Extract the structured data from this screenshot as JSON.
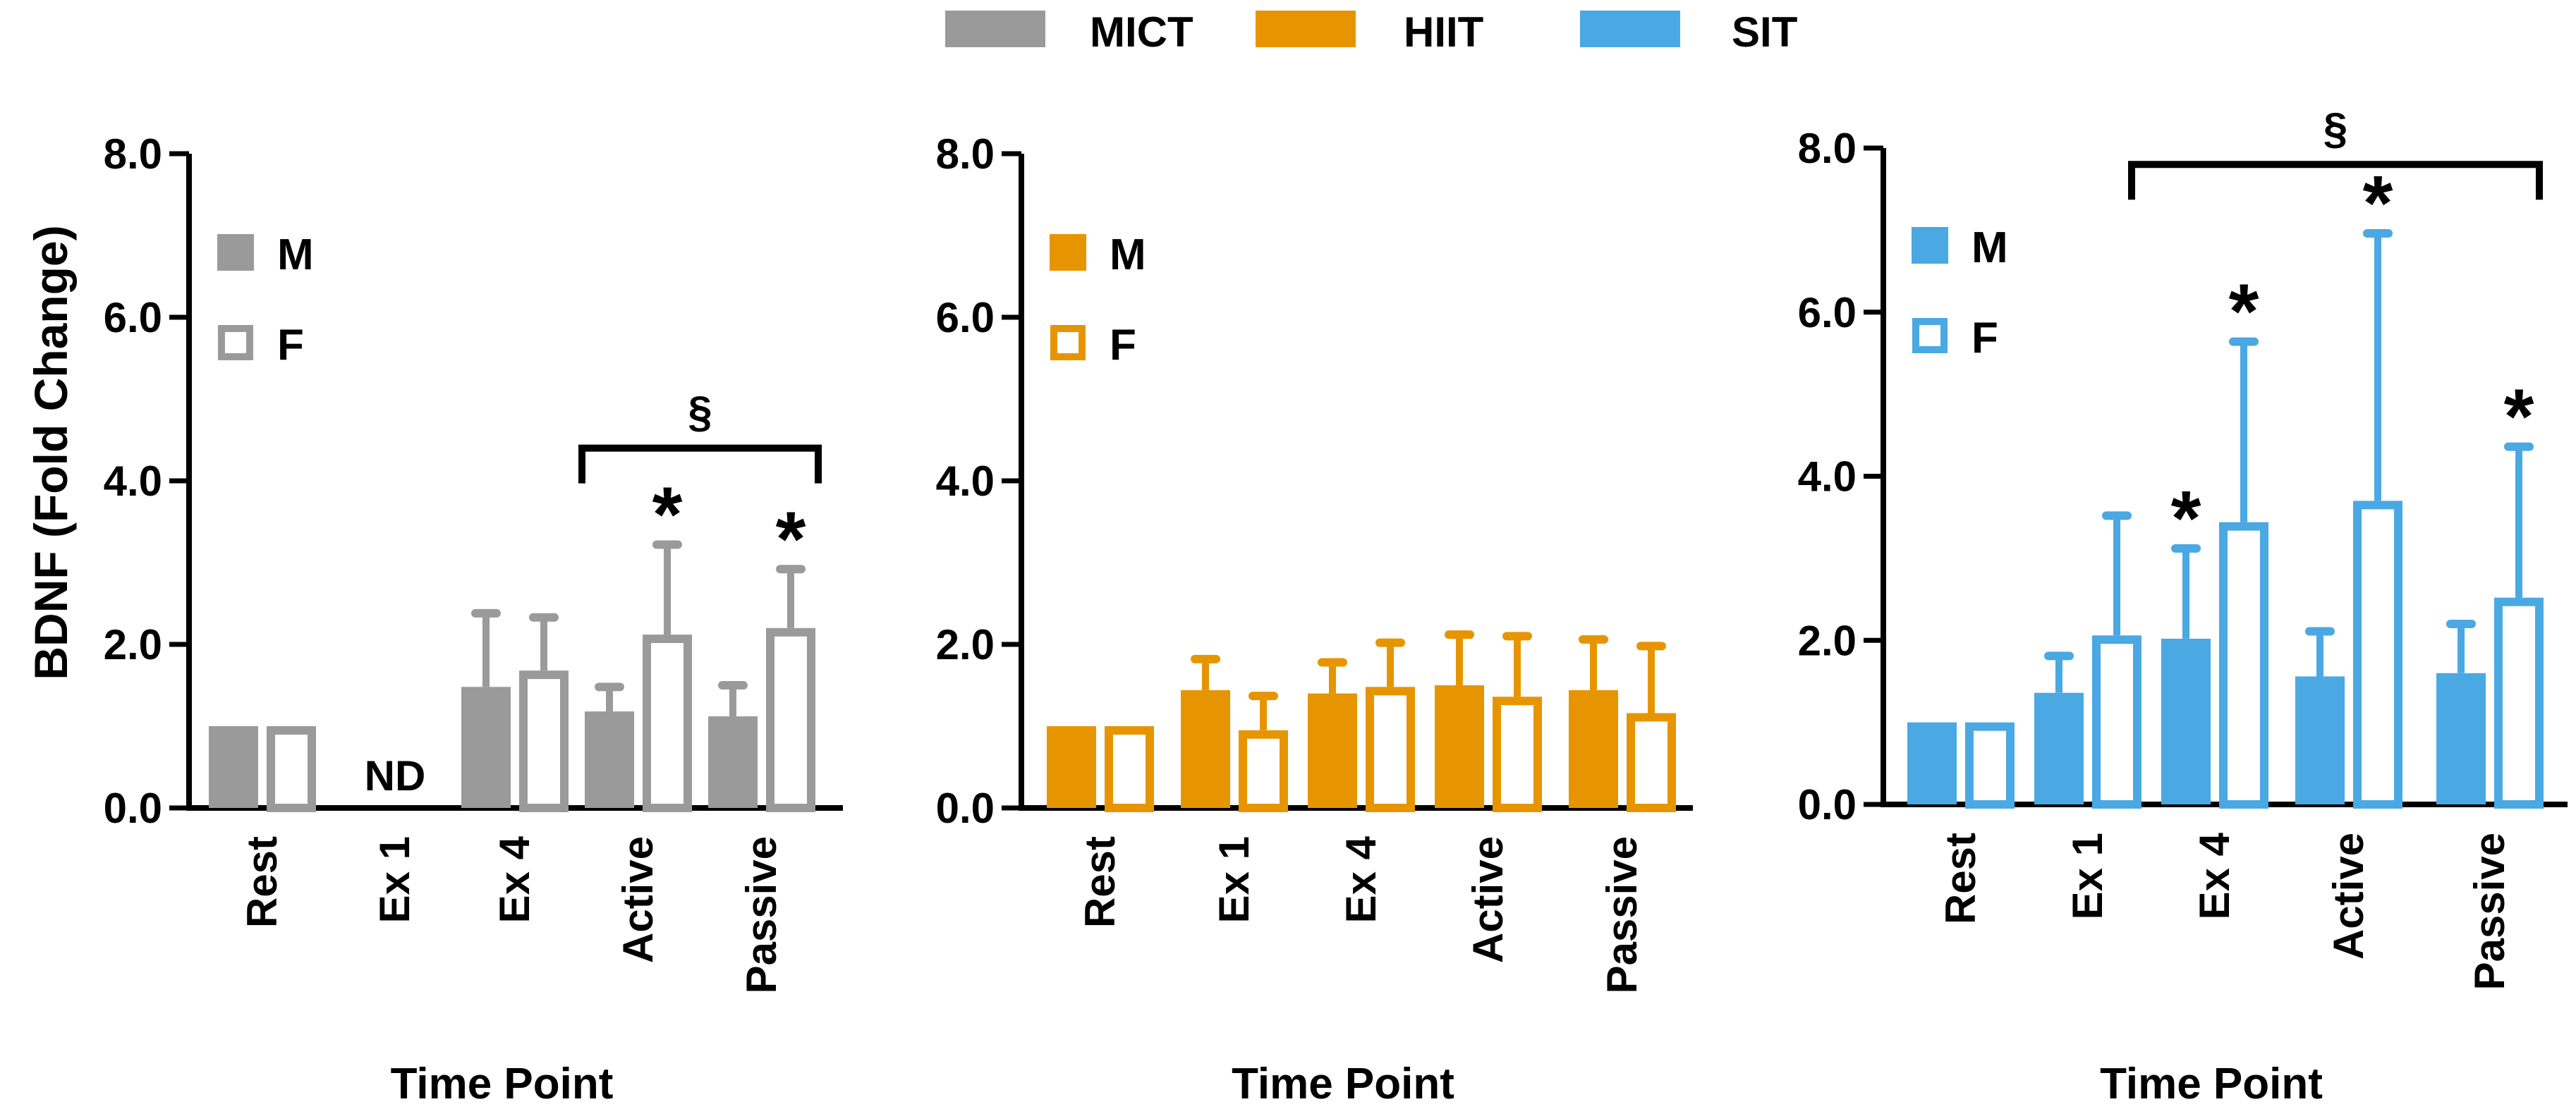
{
  "legend": [
    {
      "label": "MICT",
      "color": "#9a9a9a"
    },
    {
      "label": "HIIT",
      "color": "#e69500"
    },
    {
      "label": "SIT",
      "color": "#4aa8e3"
    }
  ],
  "sex_legend": {
    "male": "M",
    "female": "F"
  },
  "chart_data": [
    {
      "type": "bar",
      "name": "MICT",
      "color": "#9a9a9a",
      "ylabel": "BDNF (Fold Change)",
      "xlabel": "Time Point",
      "ylim": [
        0,
        8
      ],
      "yticks": [
        0,
        2,
        4,
        6,
        8
      ],
      "ytick_labels": [
        "0.0",
        "2.0",
        "4.0",
        "6.0",
        "8.0"
      ],
      "categories": [
        "Rest",
        "Ex 1",
        "Ex 4",
        "Active",
        "Passive"
      ],
      "series": [
        {
          "name": "M",
          "filled": true,
          "values": [
            1.0,
            null,
            1.48,
            1.18,
            1.12
          ],
          "errors": [
            0,
            null,
            0.9,
            0.3,
            0.38
          ]
        },
        {
          "name": "F",
          "filled": false,
          "values": [
            1.0,
            null,
            1.68,
            2.12,
            2.2
          ],
          "errors": [
            0,
            null,
            0.65,
            1.1,
            0.72
          ]
        }
      ],
      "notes": [
        {
          "category": 1,
          "text": "ND"
        }
      ],
      "stars": [
        {
          "category": 3,
          "series": "F"
        },
        {
          "category": 4,
          "series": "F"
        }
      ],
      "bracket": {
        "from": 3,
        "to": 4,
        "label": "§",
        "level": 4.4
      }
    },
    {
      "type": "bar",
      "name": "HIIT",
      "color": "#e69500",
      "ylabel": "",
      "xlabel": "Time Point",
      "ylim": [
        0,
        8
      ],
      "yticks": [
        0,
        2,
        4,
        6,
        8
      ],
      "ytick_labels": [
        "0.0",
        "2.0",
        "4.0",
        "6.0",
        "8.0"
      ],
      "categories": [
        "Rest",
        "Ex 1",
        "Ex 4",
        "Active",
        "Passive"
      ],
      "series": [
        {
          "name": "M",
          "filled": true,
          "values": [
            1.0,
            1.44,
            1.4,
            1.5,
            1.44
          ],
          "errors": [
            0,
            0.38,
            0.38,
            0.62,
            0.62
          ]
        },
        {
          "name": "F",
          "filled": false,
          "values": [
            1.0,
            0.95,
            1.48,
            1.36,
            1.16
          ],
          "errors": [
            0,
            0.42,
            0.54,
            0.74,
            0.82
          ]
        }
      ],
      "notes": [],
      "stars": [],
      "bracket": null
    },
    {
      "type": "bar",
      "name": "SIT",
      "color": "#4aa8e3",
      "ylabel": "",
      "xlabel": "Time Point",
      "ylim": [
        0,
        8
      ],
      "yticks": [
        0,
        2,
        4,
        6,
        8
      ],
      "ytick_labels": [
        "0.0",
        "2.0",
        "4.0",
        "6.0",
        "8.0"
      ],
      "categories": [
        "Rest",
        "Ex 1",
        "Ex 4",
        "Active",
        "Passive"
      ],
      "series": [
        {
          "name": "M",
          "filled": true,
          "values": [
            1.0,
            1.36,
            2.02,
            1.56,
            1.6
          ],
          "errors": [
            0,
            0.45,
            1.1,
            0.55,
            0.6
          ]
        },
        {
          "name": "F",
          "filled": false,
          "values": [
            1.0,
            2.06,
            3.44,
            3.7,
            2.52
          ],
          "errors": [
            0,
            1.46,
            2.2,
            3.26,
            1.84
          ]
        }
      ],
      "notes": [],
      "stars": [
        {
          "category": 2,
          "series": "M"
        },
        {
          "category": 2,
          "series": "F"
        },
        {
          "category": 3,
          "series": "F"
        },
        {
          "category": 4,
          "series": "F"
        }
      ],
      "bracket": {
        "from": 1.5,
        "to": 4.5,
        "label": "§",
        "level": 7.8
      }
    }
  ]
}
